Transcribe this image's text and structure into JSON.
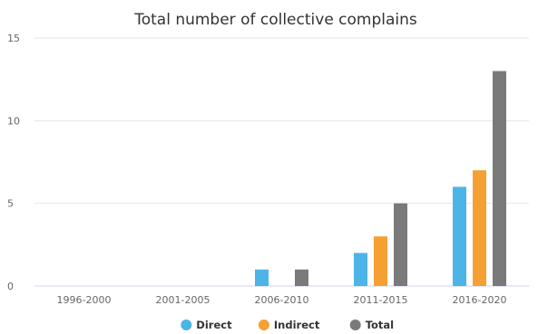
{
  "chart_data": {
    "type": "bar",
    "title": "Total number of collective complains",
    "categories": [
      "1996-2000",
      "2001-2005",
      "2006-2010",
      "2011-2015",
      "2016-2020"
    ],
    "series": [
      {
        "name": "Direct",
        "color": "#4db4e7",
        "values": [
          0,
          0,
          1,
          2,
          6
        ]
      },
      {
        "name": "Indirect",
        "color": "#f5a032",
        "values": [
          0,
          0,
          0,
          3,
          7
        ]
      },
      {
        "name": "Total",
        "color": "#7a7a7a",
        "values": [
          0,
          0,
          1,
          5,
          13
        ]
      }
    ],
    "ylim": [
      0,
      15
    ],
    "yticks": [
      "0",
      "5",
      "10",
      "15"
    ],
    "xlabel": "",
    "ylabel": "",
    "grid": true,
    "legend_position": "bottom-center"
  }
}
